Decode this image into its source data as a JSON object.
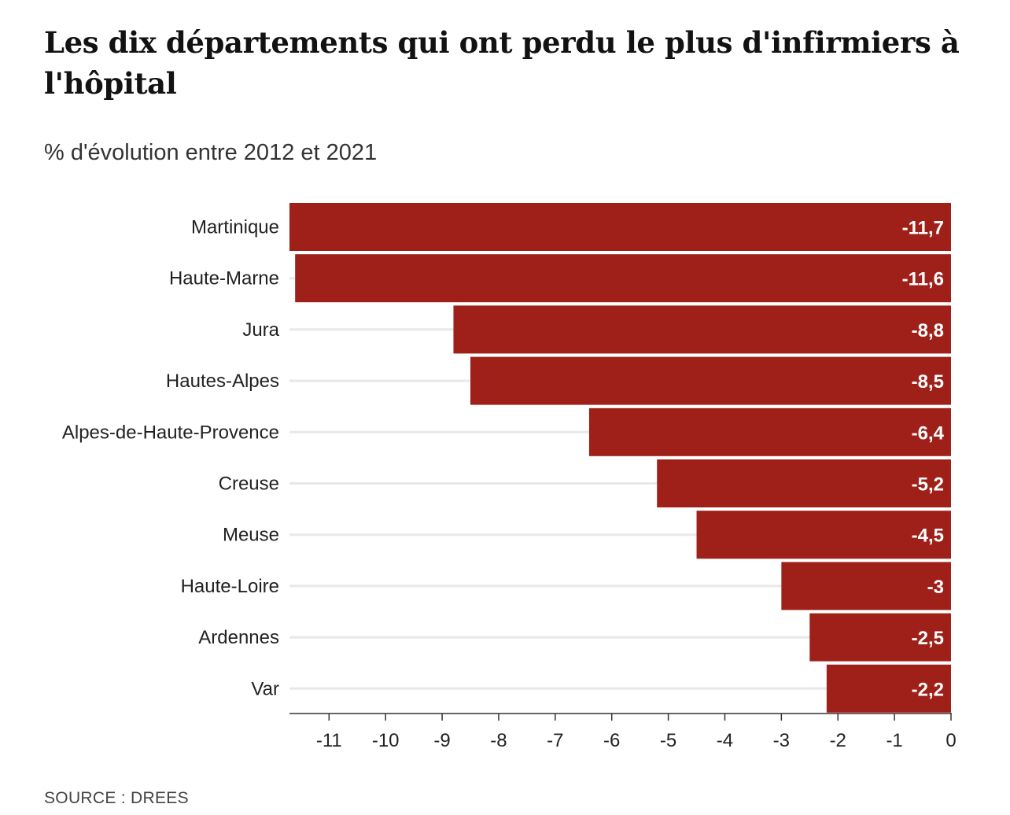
{
  "header": {
    "title": "Les dix départements qui ont perdu le plus d'infirmiers à l'hôpital",
    "subtitle": "% d'évolution entre 2012 et 2021"
  },
  "footer": {
    "source": "SOURCE : DREES"
  },
  "colors": {
    "bar": "#9e2019",
    "gridline": "#e8e8e8",
    "axis": "#333333",
    "value_text": "#ffffff"
  },
  "chart_data": {
    "type": "bar",
    "orientation": "horizontal",
    "categories": [
      "Martinique",
      "Haute-Marne",
      "Jura",
      "Hautes-Alpes",
      "Alpes-de-Haute-Provence",
      "Creuse",
      "Meuse",
      "Haute-Loire",
      "Ardennes",
      "Var"
    ],
    "values": [
      -11.7,
      -11.6,
      -8.8,
      -8.5,
      -6.4,
      -5.2,
      -4.5,
      -3,
      -2.5,
      -2.2
    ],
    "value_labels": [
      "-11,7",
      "-11,6",
      "-8,8",
      "-8,5",
      "-6,4",
      "-5,2",
      "-4,5",
      "-3",
      "-2,5",
      "-2,2"
    ],
    "xlim": [
      -11.7,
      0
    ],
    "x_ticks": [
      -11,
      -10,
      -9,
      -8,
      -7,
      -6,
      -5,
      -4,
      -3,
      -2,
      -1,
      0
    ],
    "x_tick_labels": [
      "-11",
      "-10",
      "-9",
      "-8",
      "-7",
      "-6",
      "-5",
      "-4",
      "-3",
      "-2",
      "-1",
      "0"
    ],
    "grid": true,
    "legend": "none"
  }
}
